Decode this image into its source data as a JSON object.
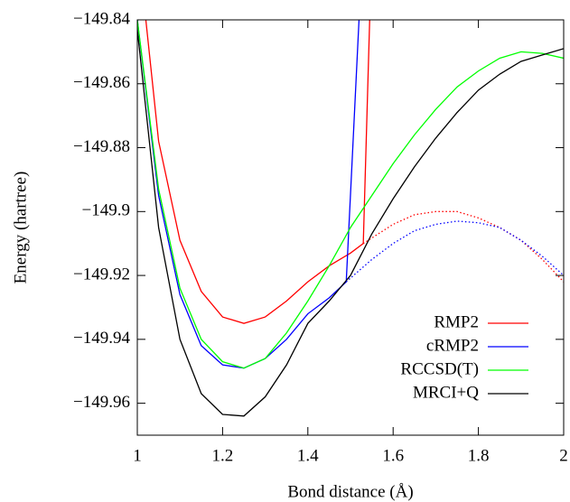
{
  "chart_data": {
    "type": "line",
    "x_label": "Bond distance (Å)",
    "y_label": "Energy (hartree)",
    "xlim": [
      1,
      2
    ],
    "xticks": [
      1,
      1.2,
      1.4,
      1.6,
      1.8,
      2
    ],
    "ylim": [
      -149.97,
      -149.84
    ],
    "yticks": [
      {
        "value": -149.84,
        "label": "−149.84"
      },
      {
        "value": -149.86,
        "label": "−149.86"
      },
      {
        "value": -149.88,
        "label": "−149.88"
      },
      {
        "value": -149.9,
        "label": "−149.9"
      },
      {
        "value": -149.92,
        "label": "−149.92"
      },
      {
        "value": -149.94,
        "label": "−149.94"
      },
      {
        "value": -149.96,
        "label": "−149.96"
      }
    ],
    "legend": "lower right",
    "series": [
      {
        "name": "RMP2",
        "color": "#ff0000",
        "x": [
          1.02,
          1.05,
          1.1,
          1.15,
          1.2,
          1.25,
          1.3,
          1.35,
          1.4,
          1.45,
          1.5,
          1.53,
          1.545
        ],
        "values": [
          -149.84,
          -149.878,
          -149.909,
          -149.925,
          -149.933,
          -149.935,
          -149.933,
          -149.928,
          -149.922,
          -149.917,
          -149.913,
          -149.91,
          -149.84
        ]
      },
      {
        "name": "cRMP2",
        "color": "#0000ff",
        "x": [
          1,
          1.05,
          1.1,
          1.15,
          1.2,
          1.25,
          1.3,
          1.35,
          1.4,
          1.45,
          1.49,
          1.52
        ],
        "values": [
          -149.84,
          -149.895,
          -149.926,
          -149.942,
          -149.948,
          -149.949,
          -149.946,
          -149.94,
          -149.932,
          -149.927,
          -149.922,
          -149.84
        ]
      },
      {
        "name": "RCCSD(T)",
        "color": "#00ff00",
        "x": [
          1,
          1.05,
          1.1,
          1.15,
          1.2,
          1.25,
          1.3,
          1.35,
          1.4,
          1.45,
          1.5,
          1.55,
          1.6,
          1.65,
          1.7,
          1.75,
          1.8,
          1.85,
          1.9,
          1.95,
          2
        ],
        "values": [
          -149.84,
          -149.893,
          -149.924,
          -149.94,
          -149.947,
          -149.949,
          -149.946,
          -149.938,
          -149.928,
          -149.917,
          -149.905,
          -149.895,
          -149.885,
          -149.876,
          -149.868,
          -149.861,
          -149.856,
          -149.852,
          -149.85,
          -149.8505,
          -149.852
        ]
      },
      {
        "name": "MRCI+Q",
        "color": "#000000",
        "x": [
          1,
          1.05,
          1.1,
          1.15,
          1.2,
          1.25,
          1.3,
          1.35,
          1.4,
          1.45,
          1.5,
          1.55,
          1.6,
          1.65,
          1.7,
          1.75,
          1.8,
          1.85,
          1.9,
          1.95,
          2
        ],
        "values": [
          -149.843,
          -149.905,
          -149.94,
          -149.957,
          -149.9635,
          -149.964,
          -149.958,
          -149.948,
          -149.935,
          -149.928,
          -149.92,
          -149.907,
          -149.896,
          -149.886,
          -149.877,
          -149.869,
          -149.862,
          -149.857,
          -149.853,
          -149.851,
          -149.849
        ]
      },
      {
        "color": "#ff0000",
        "style": "dotted",
        "x": [
          1.53,
          1.6,
          1.65,
          1.7,
          1.75,
          1.8,
          1.85,
          1.9,
          1.95,
          2
        ],
        "values": [
          -149.91,
          -149.904,
          -149.901,
          -149.9,
          -149.9,
          -149.902,
          -149.905,
          -149.909,
          -149.915,
          -149.922
        ]
      },
      {
        "color": "#0000ff",
        "style": "dotted",
        "x": [
          1.49,
          1.55,
          1.6,
          1.65,
          1.7,
          1.75,
          1.8,
          1.85,
          1.9,
          1.95,
          2
        ],
        "values": [
          -149.922,
          -149.915,
          -149.91,
          -149.906,
          -149.904,
          -149.903,
          -149.9035,
          -149.905,
          -149.909,
          -149.914,
          -149.92
        ]
      }
    ]
  }
}
